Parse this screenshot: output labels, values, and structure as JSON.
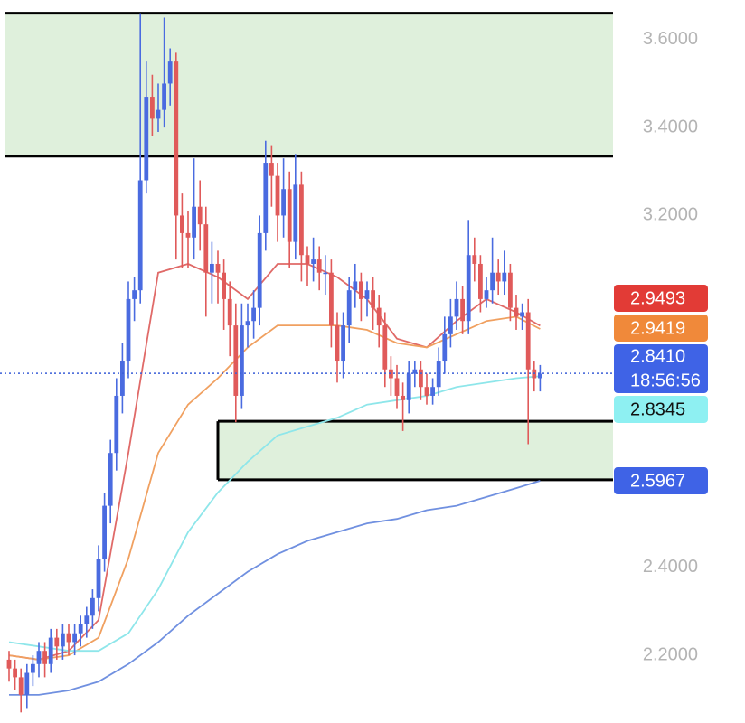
{
  "chart_data": {
    "type": "candlestick",
    "ylim": [
      2.046,
      3.69
    ],
    "yticks": [
      {
        "value": 3.6,
        "label": "3.6000"
      },
      {
        "value": 3.4,
        "label": "3.4000"
      },
      {
        "value": 3.2,
        "label": "3.2000"
      },
      {
        "value": 2.4,
        "label": "2.4000"
      },
      {
        "value": 2.2,
        "label": "2.2000"
      }
    ],
    "up_color": "#4a6be0",
    "down_color": "#e05a5a",
    "open": [
      2.19,
      2.17,
      2.15,
      2.11,
      2.16,
      2.18,
      2.21,
      2.18,
      2.24,
      2.22,
      2.25,
      2.23,
      2.25,
      2.27,
      2.29,
      2.33,
      2.42,
      2.54,
      2.66,
      2.79,
      2.87,
      3.01,
      3.03,
      3.28,
      3.47,
      3.42,
      3.44,
      3.5,
      3.55,
      3.2,
      3.16,
      3.15,
      3.22,
      3.18,
      3.07,
      3.09,
      3.07,
      3.01,
      2.95,
      2.79,
      2.95,
      2.96,
      2.99,
      3.16,
      3.32,
      3.29,
      3.2,
      3.26,
      3.14,
      3.27,
      3.11,
      3.09,
      3.1,
      3.07,
      3.07,
      2.95,
      2.87,
      2.95,
      3.03,
      3.05,
      3.01,
      3.03,
      2.99,
      2.95,
      2.85,
      2.83,
      2.79,
      2.78,
      2.84,
      2.85,
      2.81,
      2.79,
      2.81,
      2.87,
      2.93,
      2.97,
      3.01,
      2.96,
      3.11,
      3.09,
      3.01,
      3.03,
      3.07,
      3.05,
      3.07,
      2.99,
      2.97,
      2.98,
      2.85,
      2.83
    ],
    "high": [
      2.21,
      2.19,
      2.17,
      2.18,
      2.2,
      2.23,
      2.23,
      2.26,
      2.26,
      2.27,
      2.27,
      2.27,
      2.29,
      2.31,
      2.35,
      2.45,
      2.57,
      2.69,
      2.83,
      2.91,
      3.05,
      3.06,
      3.66,
      3.55,
      3.52,
      3.5,
      3.65,
      3.58,
      3.57,
      3.25,
      3.21,
      3.33,
      3.28,
      3.22,
      3.14,
      3.12,
      3.1,
      3.05,
      3.0,
      3.0,
      3.0,
      3.03,
      3.2,
      3.37,
      3.36,
      3.32,
      3.33,
      3.3,
      3.34,
      3.3,
      3.13,
      3.15,
      3.13,
      3.11,
      3.1,
      2.98,
      2.98,
      3.06,
      3.09,
      3.07,
      3.05,
      3.06,
      3.02,
      2.98,
      2.88,
      2.86,
      2.82,
      2.87,
      2.87,
      2.87,
      2.84,
      2.83,
      2.9,
      2.97,
      3.01,
      3.05,
      3.04,
      3.19,
      3.15,
      3.11,
      3.06,
      3.15,
      3.1,
      3.12,
      3.09,
      3.02,
      3.0,
      3.01,
      2.87,
      2.86
    ],
    "low": [
      2.14,
      2.12,
      2.07,
      2.08,
      2.13,
      2.15,
      2.15,
      2.16,
      2.19,
      2.19,
      2.2,
      2.2,
      2.22,
      2.24,
      2.26,
      2.3,
      2.39,
      2.5,
      2.62,
      2.75,
      2.83,
      2.96,
      3.0,
      3.25,
      3.38,
      3.39,
      3.4,
      3.45,
      3.1,
      3.08,
      3.08,
      3.1,
      3.12,
      2.97,
      3.0,
      3.0,
      2.94,
      2.88,
      2.73,
      2.76,
      2.9,
      2.92,
      2.95,
      3.12,
      3.22,
      3.14,
      3.15,
      3.08,
      3.1,
      3.05,
      3.04,
      3.05,
      3.03,
      3.02,
      2.9,
      2.82,
      2.83,
      2.91,
      2.99,
      2.96,
      2.97,
      2.94,
      2.9,
      2.81,
      2.79,
      2.76,
      2.71,
      2.75,
      2.81,
      2.78,
      2.77,
      2.77,
      2.79,
      2.84,
      2.9,
      2.94,
      2.93,
      2.93,
      3.05,
      2.98,
      2.99,
      3.0,
      3.02,
      3.02,
      2.96,
      2.94,
      2.94,
      2.68,
      2.8,
      2.8
    ],
    "close": [
      2.17,
      2.15,
      2.11,
      2.16,
      2.18,
      2.21,
      2.18,
      2.24,
      2.22,
      2.25,
      2.23,
      2.25,
      2.27,
      2.29,
      2.33,
      2.42,
      2.54,
      2.66,
      2.79,
      2.87,
      3.01,
      3.03,
      3.28,
      3.47,
      3.42,
      3.44,
      3.5,
      3.55,
      3.2,
      3.16,
      3.15,
      3.22,
      3.18,
      3.07,
      3.09,
      3.07,
      3.01,
      2.95,
      2.79,
      2.95,
      2.96,
      2.99,
      3.16,
      3.32,
      3.29,
      3.2,
      3.26,
      3.14,
      3.27,
      3.11,
      3.09,
      3.1,
      3.07,
      3.07,
      2.95,
      2.87,
      2.95,
      3.03,
      3.05,
      3.01,
      3.03,
      2.99,
      2.95,
      2.85,
      2.83,
      2.79,
      2.78,
      2.84,
      2.85,
      2.81,
      2.79,
      2.81,
      2.87,
      2.93,
      2.97,
      3.01,
      2.96,
      3.11,
      3.09,
      3.01,
      3.03,
      3.07,
      3.05,
      3.07,
      2.99,
      2.97,
      2.98,
      2.85,
      2.83,
      2.84
    ],
    "series": [
      {
        "color": "#e06a68",
        "x": [
          0,
          5,
          10,
          15,
          20,
          25,
          30,
          35,
          40,
          45,
          50,
          55,
          60,
          65,
          70,
          75,
          80,
          85,
          89
        ],
        "values": [
          2.2,
          2.19,
          2.21,
          2.28,
          2.66,
          3.07,
          3.09,
          3.06,
          3.01,
          3.09,
          3.09,
          3.06,
          3.01,
          2.92,
          2.9,
          2.96,
          3.01,
          2.98,
          2.9493
        ]
      },
      {
        "color": "#f0a060",
        "x": [
          0,
          5,
          10,
          15,
          20,
          25,
          30,
          35,
          40,
          45,
          50,
          55,
          60,
          65,
          70,
          75,
          80,
          85,
          89
        ],
        "values": [
          2.2,
          2.19,
          2.2,
          2.24,
          2.42,
          2.66,
          2.77,
          2.83,
          2.9,
          2.95,
          2.95,
          2.95,
          2.94,
          2.91,
          2.9,
          2.93,
          2.96,
          2.97,
          2.9419
        ]
      },
      {
        "color": "#8ee6ea",
        "x": [
          0,
          5,
          10,
          15,
          20,
          25,
          30,
          35,
          40,
          45,
          50,
          55,
          60,
          65,
          70,
          75,
          80,
          85,
          89
        ],
        "values": [
          2.23,
          2.22,
          2.21,
          2.21,
          2.25,
          2.35,
          2.48,
          2.57,
          2.64,
          2.7,
          2.72,
          2.74,
          2.77,
          2.78,
          2.79,
          2.81,
          2.82,
          2.83,
          2.8345
        ]
      },
      {
        "color": "#7090e0",
        "x": [
          0,
          5,
          10,
          15,
          20,
          25,
          30,
          35,
          40,
          45,
          50,
          55,
          60,
          65,
          70,
          75,
          80,
          85,
          89
        ],
        "values": [
          2.11,
          2.11,
          2.12,
          2.14,
          2.18,
          2.23,
          2.29,
          2.34,
          2.39,
          2.43,
          2.46,
          2.48,
          2.5,
          2.51,
          2.53,
          2.54,
          2.56,
          2.58,
          2.5967
        ]
      }
    ],
    "zones": [
      {
        "from": 3.335,
        "to": 3.66,
        "color": "#dff0dc"
      },
      {
        "from": 2.599,
        "to": 2.732,
        "start": 35,
        "color": "#dff0dc"
      }
    ],
    "last_price": 2.841,
    "last_price_color": "#3a5ed8",
    "price_labels": [
      {
        "value": 2.9493,
        "label": "2.9493",
        "color": "#e23b36",
        "text_color": "#ffffff"
      },
      {
        "value": 2.9419,
        "label": "2.9419",
        "color": "#f0893a",
        "text_color": "#ffffff"
      },
      {
        "value": 2.841,
        "label": "2.8410",
        "countdown": "18:56:56",
        "color": "#3f63e6",
        "text_color": "#ffffff"
      },
      {
        "value": 2.8345,
        "label": "2.8345",
        "color": "#8ef0f2",
        "text_color": "#111111"
      },
      {
        "value": 2.5967,
        "label": "2.5967",
        "color": "#3f63e6",
        "text_color": "#ffffff"
      }
    ]
  }
}
